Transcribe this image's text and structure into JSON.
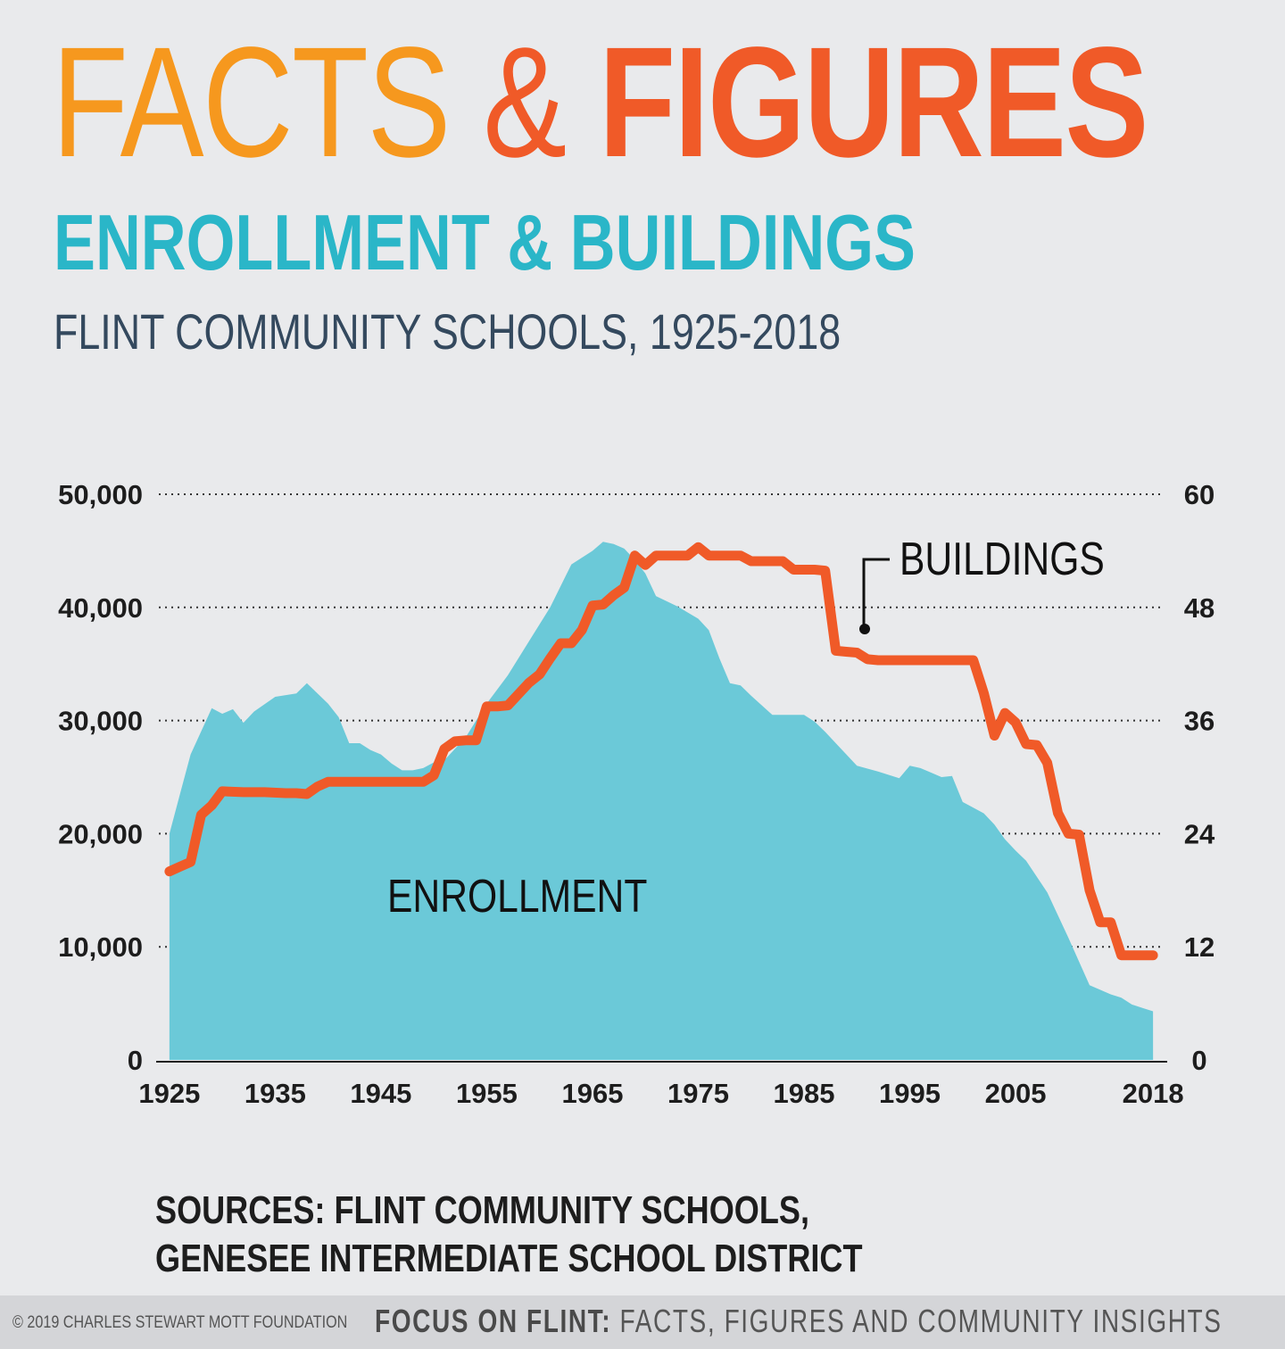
{
  "header": {
    "title_part1": "FACTS",
    "title_amp": "&",
    "title_part2": "FIGURES",
    "subtitle": "ENROLLMENT & BUILDINGS",
    "subsubtitle": "FLINT COMMUNITY SCHOOLS, 1925-2018"
  },
  "chart_data": {
    "type": "area",
    "left_axis": {
      "ticks": [
        0,
        10000,
        20000,
        30000,
        40000,
        50000
      ],
      "tick_labels": [
        "0",
        "10,000",
        "20,000",
        "30,000",
        "40,000",
        "50,000"
      ],
      "range": [
        0,
        50000
      ]
    },
    "right_axis": {
      "ticks": [
        0,
        12,
        24,
        36,
        48,
        60
      ],
      "tick_labels": [
        "0",
        "12",
        "24",
        "36",
        "48",
        "60"
      ],
      "range": [
        0,
        60
      ]
    },
    "x_axis": {
      "range": [
        1924,
        2019
      ],
      "ticks": [
        1925,
        1935,
        1945,
        1955,
        1965,
        1975,
        1985,
        1995,
        2005,
        2018
      ],
      "tick_labels": [
        "1925",
        "1935",
        "1945",
        "1955",
        "1965",
        "1975",
        "1985",
        "1995",
        "2005",
        "2018"
      ]
    },
    "grid": "dotted horizontal",
    "series": [
      {
        "name": "ENROLLMENT",
        "type": "area",
        "color": "#6bc9d8",
        "axis": "left",
        "x": [
          1925,
          1926,
          1927,
          1929,
          1930,
          1931,
          1932,
          1933,
          1935,
          1937,
          1938,
          1940,
          1941,
          1942,
          1943,
          1944,
          1945,
          1946,
          1947,
          1948,
          1949,
          1950,
          1951,
          1953,
          1955,
          1957,
          1959,
          1961,
          1963,
          1965,
          1966,
          1967,
          1968,
          1969,
          1970,
          1971,
          1973,
          1975,
          1976,
          1977,
          1978,
          1979,
          1980,
          1982,
          1985,
          1986,
          1987,
          1988,
          1990,
          1992,
          1994,
          1995,
          1996,
          1997,
          1998,
          1999,
          2000,
          2001,
          2002,
          2003,
          2004,
          2005,
          2006,
          2008,
          2010,
          2012,
          2013,
          2014,
          2015,
          2016,
          2017,
          2018
        ],
        "values": [
          20000,
          23500,
          27000,
          31100,
          30600,
          31000,
          29800,
          30800,
          32100,
          32400,
          33300,
          31500,
          30300,
          28000,
          28000,
          27400,
          27000,
          26200,
          25600,
          25600,
          25800,
          26300,
          26500,
          28500,
          31500,
          34000,
          37000,
          40000,
          43800,
          45000,
          45800,
          45600,
          45200,
          44200,
          43000,
          41000,
          40100,
          39000,
          38000,
          35500,
          33300,
          33100,
          32200,
          30500,
          30500,
          29900,
          29000,
          28000,
          26000,
          25500,
          24900,
          26000,
          25800,
          25400,
          25000,
          25100,
          22800,
          22300,
          21800,
          20800,
          19500,
          18500,
          17600,
          14800,
          10800,
          6600,
          6200,
          5800,
          5500,
          4900,
          4600,
          4300
        ]
      },
      {
        "name": "BUILDINGS",
        "type": "line",
        "color": "#f05a28",
        "axis": "right",
        "x": [
          1925,
          1926,
          1927,
          1928,
          1929,
          1930,
          1932,
          1934,
          1936,
          1937,
          1938,
          1939,
          1940,
          1942,
          1944,
          1946,
          1948,
          1949,
          1950,
          1951,
          1952,
          1953,
          1954,
          1955,
          1956,
          1957,
          1959,
          1960,
          1961,
          1962,
          1963,
          1964,
          1965,
          1966,
          1967,
          1968,
          1969,
          1970,
          1971,
          1972,
          1973,
          1974,
          1975,
          1976,
          1977,
          1978,
          1979,
          1980,
          1981,
          1982,
          1983,
          1984,
          1985,
          1986,
          1987,
          1988,
          1989,
          1990,
          1991,
          1992,
          1993,
          1994,
          1995,
          1996,
          1997,
          1998,
          1999,
          2000,
          2001,
          2002,
          2003,
          2004,
          2005,
          2006,
          2007,
          2008,
          2009,
          2010,
          2011,
          2012,
          2013,
          2014,
          2015,
          2016,
          2017,
          2018
        ],
        "values": [
          20,
          20.5,
          21,
          26,
          27,
          28.5,
          28.4,
          28.4,
          28.3,
          28.3,
          28.2,
          29,
          29.5,
          29.5,
          29.5,
          29.5,
          29.5,
          29.5,
          30.2,
          33,
          33.8,
          33.9,
          33.9,
          37.5,
          37.5,
          37.6,
          40,
          40.9,
          42.6,
          44.2,
          44.2,
          45.6,
          48.2,
          48.3,
          49.3,
          50.1,
          53.5,
          52.5,
          53.5,
          53.5,
          53.5,
          53.5,
          54.4,
          53.5,
          53.5,
          53.5,
          53.5,
          52.9,
          52.9,
          52.9,
          52.9,
          52,
          52,
          52,
          51.9,
          43.4,
          43.3,
          43.2,
          42.5,
          42.4,
          42.4,
          42.4,
          42.4,
          42.4,
          42.4,
          42.4,
          42.4,
          42.4,
          42.4,
          38.9,
          34.4,
          36.8,
          35.8,
          33.5,
          33.4,
          31.5,
          26.2,
          24,
          23.9,
          18,
          14.6,
          14.6,
          11.1,
          11.1,
          11.1,
          11.1
        ]
      }
    ],
    "labels": {
      "buildings": "BUILDINGS",
      "enrollment": "ENROLLMENT"
    }
  },
  "sources": {
    "line1": "SOURCES: FLINT COMMUNITY SCHOOLS,",
    "line2": "GENESEE INTERMEDIATE SCHOOL DISTRICT"
  },
  "footer": {
    "copyright": "© 2019 CHARLES STEWART MOTT FOUNDATION",
    "tag_bold": "FOCUS ON FLINT:",
    "tag_rest": " FACTS, FIGURES AND COMMUNITY INSIGHTS"
  }
}
